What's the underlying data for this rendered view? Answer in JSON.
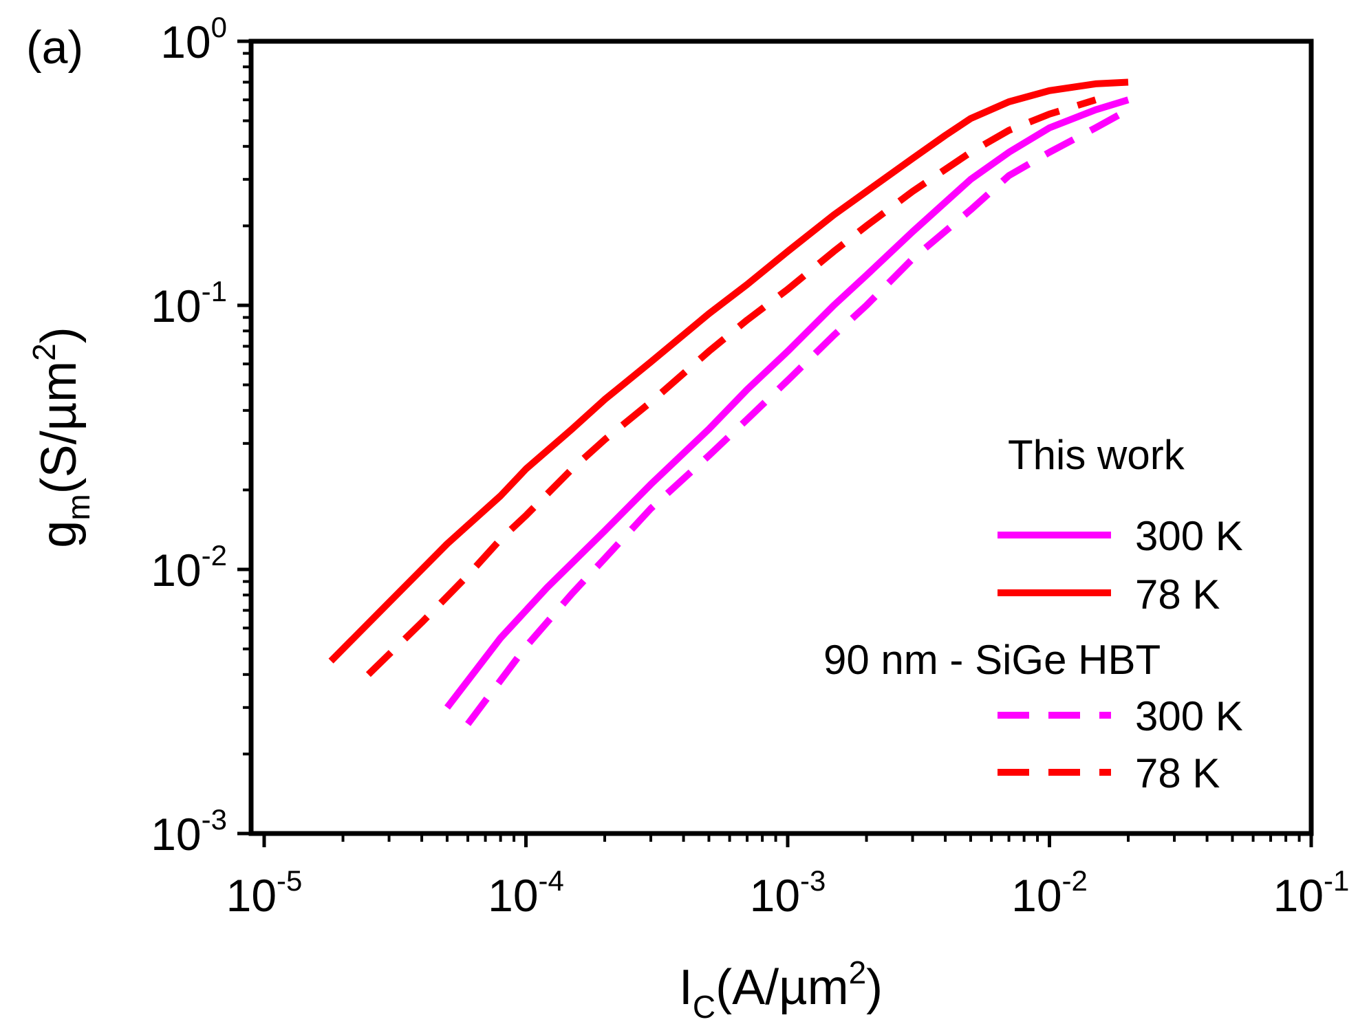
{
  "chart_data": {
    "type": "line",
    "panel_label": "(a)",
    "title": "",
    "xlabel": {
      "main": "I",
      "sub": "C",
      "tail": "(A/µm",
      "sup": "2",
      "close": ")"
    },
    "ylabel": {
      "main": "g",
      "sub": "m",
      "tail": "(S/µm",
      "sup": "2",
      "close": ")"
    },
    "x_scale": "log",
    "y_scale": "log",
    "xlim": [
      1e-05,
      0.1
    ],
    "ylim": [
      0.001,
      1
    ],
    "x_ticks": [
      {
        "value": 1e-05,
        "base": "10",
        "exp": "-5"
      },
      {
        "value": 0.0001,
        "base": "10",
        "exp": "-4"
      },
      {
        "value": 0.001,
        "base": "10",
        "exp": "-3"
      },
      {
        "value": 0.01,
        "base": "10",
        "exp": "-2"
      },
      {
        "value": 0.1,
        "base": "10",
        "exp": "-1"
      }
    ],
    "y_ticks": [
      {
        "value": 0.001,
        "base": "10",
        "exp": "-3"
      },
      {
        "value": 0.01,
        "base": "10",
        "exp": "-2"
      },
      {
        "value": 0.1,
        "base": "10",
        "exp": "-1"
      },
      {
        "value": 1,
        "base": "10",
        "exp": "0"
      }
    ],
    "grid": false,
    "legend": {
      "position": "bottom-right",
      "groups": [
        {
          "title": "This work",
          "entries": [
            {
              "series": 0,
              "label": "300 K"
            },
            {
              "series": 1,
              "label": "78 K"
            }
          ]
        },
        {
          "title": "90 nm - SiGe HBT",
          "entries": [
            {
              "series": 2,
              "label": "300 K"
            },
            {
              "series": 3,
              "label": "78 K"
            }
          ]
        }
      ]
    },
    "series": [
      {
        "name": "This work 300 K",
        "color": "#ff00ff",
        "dash": false,
        "x": [
          5e-05,
          8e-05,
          0.00012,
          0.0002,
          0.0003,
          0.0005,
          0.0007,
          0.001,
          0.0015,
          0.002,
          0.003,
          0.005,
          0.007,
          0.01,
          0.015,
          0.02
        ],
        "y": [
          0.003,
          0.0055,
          0.0085,
          0.014,
          0.021,
          0.034,
          0.048,
          0.067,
          0.1,
          0.13,
          0.19,
          0.3,
          0.38,
          0.47,
          0.55,
          0.6
        ]
      },
      {
        "name": "This work 78 K",
        "color": "#ff0000",
        "dash": false,
        "x": [
          1.8e-05,
          3e-05,
          5e-05,
          8e-05,
          0.0001,
          0.00015,
          0.0002,
          0.0003,
          0.0005,
          0.0007,
          0.001,
          0.0015,
          0.002,
          0.003,
          0.004,
          0.005,
          0.007,
          0.01,
          0.015,
          0.02
        ],
        "y": [
          0.0045,
          0.0075,
          0.0125,
          0.019,
          0.024,
          0.034,
          0.044,
          0.061,
          0.093,
          0.12,
          0.16,
          0.22,
          0.27,
          0.36,
          0.44,
          0.51,
          0.59,
          0.65,
          0.69,
          0.7
        ]
      },
      {
        "name": "90 nm - SiGe HBT 300 K",
        "color": "#ff00ff",
        "dash": true,
        "x": [
          6e-05,
          0.0001,
          0.00015,
          0.0002,
          0.0003,
          0.0005,
          0.0007,
          0.001,
          0.0015,
          0.002,
          0.003,
          0.005,
          0.007,
          0.01,
          0.015,
          0.02
        ],
        "y": [
          0.0026,
          0.0051,
          0.0081,
          0.011,
          0.017,
          0.027,
          0.037,
          0.052,
          0.077,
          0.1,
          0.15,
          0.23,
          0.31,
          0.38,
          0.47,
          0.55
        ]
      },
      {
        "name": "90 nm - SiGe HBT 78 K",
        "color": "#ff0000",
        "dash": true,
        "x": [
          2.5e-05,
          4e-05,
          6e-05,
          8e-05,
          0.0001,
          0.00015,
          0.0002,
          0.0003,
          0.0005,
          0.0007,
          0.001,
          0.0015,
          0.002,
          0.003,
          0.005,
          0.007,
          0.01,
          0.015
        ],
        "y": [
          0.004,
          0.0063,
          0.0095,
          0.013,
          0.016,
          0.024,
          0.031,
          0.043,
          0.067,
          0.088,
          0.115,
          0.16,
          0.2,
          0.27,
          0.38,
          0.46,
          0.53,
          0.6
        ]
      }
    ]
  }
}
